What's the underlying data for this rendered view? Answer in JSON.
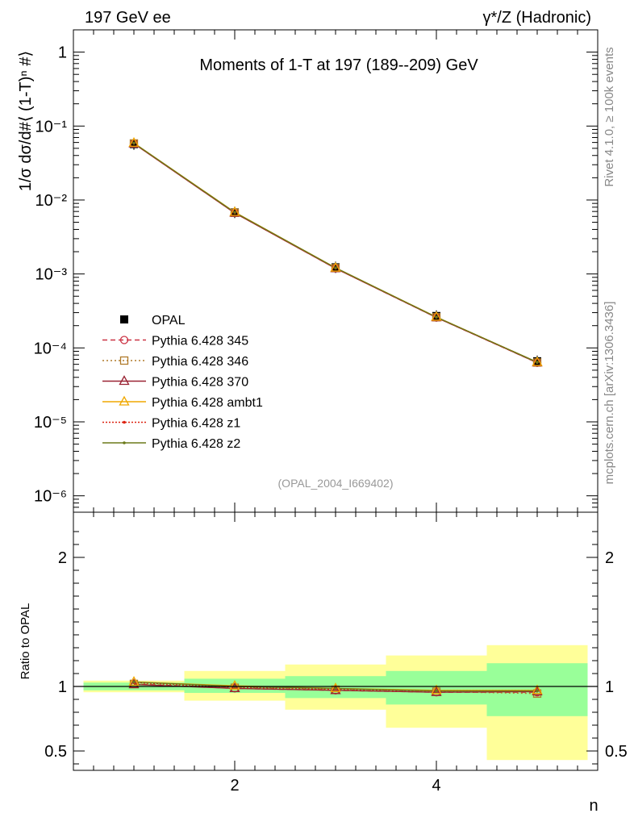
{
  "header": {
    "left": "197 GeV ee",
    "right": "γ*/Z (Hadronic)"
  },
  "side_labels": {
    "rivet": "Rivet 4.1.0, ≥ 100k events",
    "mcplots": "mcplots.cern.ch [arXiv:1306.3436]"
  },
  "chart_data": [
    {
      "type": "line",
      "panel": "main",
      "title": "Moments of 1-T at 197 (189--209) GeV",
      "ylabel": "1/σ  dσ/d#⟨ (1-T)ⁿ #⟩",
      "xlabel": "n",
      "yscale": "log",
      "ylim": [
        6e-07,
        2
      ],
      "xlim": [
        0.4,
        5.6
      ],
      "ytick_labels": [
        "10⁻⁶",
        "10⁻⁵",
        "10⁻⁴",
        "10⁻³",
        "10⁻²",
        "10⁻¹",
        "1"
      ],
      "ytick_values": [
        1e-06,
        1e-05,
        0.0001,
        0.001,
        0.01,
        0.1,
        1
      ],
      "annotation": "(OPAL_2004_I669402)",
      "legend_position": "middle-left",
      "x": [
        1,
        2,
        3,
        4,
        5
      ],
      "data": {
        "name": "OPAL",
        "values": [
          0.057,
          0.0068,
          0.00123,
          0.00027,
          6.6e-05
        ]
      },
      "series": [
        {
          "name": "Pythia 6.428 345",
          "color": "#cc3344",
          "dash": "6,4",
          "marker": "circle-open",
          "values": [
            0.058,
            0.0067,
            0.00119,
            0.000258,
            6.3e-05
          ]
        },
        {
          "name": "Pythia 6.428 346",
          "color": "#b07a2a",
          "dash": "2,3",
          "marker": "square-open",
          "values": [
            0.0582,
            0.00672,
            0.0012,
            0.00026,
            6.35e-05
          ]
        },
        {
          "name": "Pythia 6.428 370",
          "color": "#992233",
          "dash": "",
          "marker": "triangle-open",
          "values": [
            0.0578,
            0.00668,
            0.00119,
            0.000258,
            6.32e-05
          ]
        },
        {
          "name": "Pythia 6.428 ambt1",
          "color": "#f0a800",
          "dash": "",
          "marker": "triangle-open",
          "values": [
            0.059,
            0.00685,
            0.00121,
            0.000262,
            6.4e-05
          ]
        },
        {
          "name": "Pythia 6.428 z1",
          "color": "#dd2211",
          "dash": "2,2",
          "marker": "dot",
          "values": [
            0.0585,
            0.00675,
            0.0012,
            0.00026,
            6.38e-05
          ]
        },
        {
          "name": "Pythia 6.428 z2",
          "color": "#6b7a1a",
          "dash": "",
          "marker": "dot",
          "values": [
            0.0588,
            0.0068,
            0.00121,
            0.000261,
            6.4e-05
          ]
        }
      ]
    },
    {
      "type": "line",
      "panel": "ratio",
      "ylabel": "Ratio to OPAL",
      "xlabel": "n",
      "ylim": [
        0.35,
        2.35
      ],
      "xlim": [
        0.4,
        5.6
      ],
      "ytick_labels": [
        "0.5",
        "1",
        "2"
      ],
      "ytick_values": [
        0.5,
        1,
        2
      ],
      "xtick_labels": [
        "2",
        "4"
      ],
      "xtick_values": [
        2,
        4
      ],
      "x": [
        1,
        2,
        3,
        4,
        5
      ],
      "reference": 1,
      "bands": {
        "bins": [
          [
            0.5,
            1.5
          ],
          [
            1.5,
            2.5
          ],
          [
            2.5,
            3.5
          ],
          [
            3.5,
            4.5
          ],
          [
            4.5,
            5.5
          ]
        ],
        "inner": [
          [
            0.97,
            1.03
          ],
          [
            0.95,
            1.06
          ],
          [
            0.91,
            1.08
          ],
          [
            0.86,
            1.12
          ],
          [
            0.77,
            1.18
          ]
        ],
        "outer": [
          [
            0.955,
            1.045
          ],
          [
            0.89,
            1.12
          ],
          [
            0.82,
            1.17
          ],
          [
            0.68,
            1.24
          ],
          [
            0.43,
            1.32
          ]
        ],
        "inner_color": "#99ff99",
        "outer_color": "#ffff99"
      },
      "series": [
        {
          "name": "Pythia 6.428 345",
          "color": "#cc3344",
          "dash": "6,4",
          "marker": "circle-open",
          "values": [
            1.02,
            0.985,
            0.97,
            0.955,
            0.955
          ]
        },
        {
          "name": "Pythia 6.428 346",
          "color": "#b07a2a",
          "dash": "2,3",
          "marker": "square-open",
          "values": [
            1.02,
            0.99,
            0.975,
            0.96,
            0.945
          ]
        },
        {
          "name": "Pythia 6.428 370",
          "color": "#992233",
          "dash": "",
          "marker": "triangle-open",
          "values": [
            1.015,
            0.985,
            0.97,
            0.955,
            0.96
          ]
        },
        {
          "name": "Pythia 6.428 ambt1",
          "color": "#f0a800",
          "dash": "",
          "marker": "triangle-open",
          "values": [
            1.035,
            1.005,
            0.985,
            0.97,
            0.97
          ]
        },
        {
          "name": "Pythia 6.428 z1",
          "color": "#dd2211",
          "dash": "2,2",
          "marker": "dot",
          "values": [
            1.03,
            0.995,
            0.98,
            0.965,
            0.965
          ]
        },
        {
          "name": "Pythia 6.428 z2",
          "color": "#6b7a1a",
          "dash": "",
          "marker": "dot",
          "values": [
            1.035,
            1.0,
            0.985,
            0.965,
            0.965
          ]
        }
      ]
    }
  ]
}
